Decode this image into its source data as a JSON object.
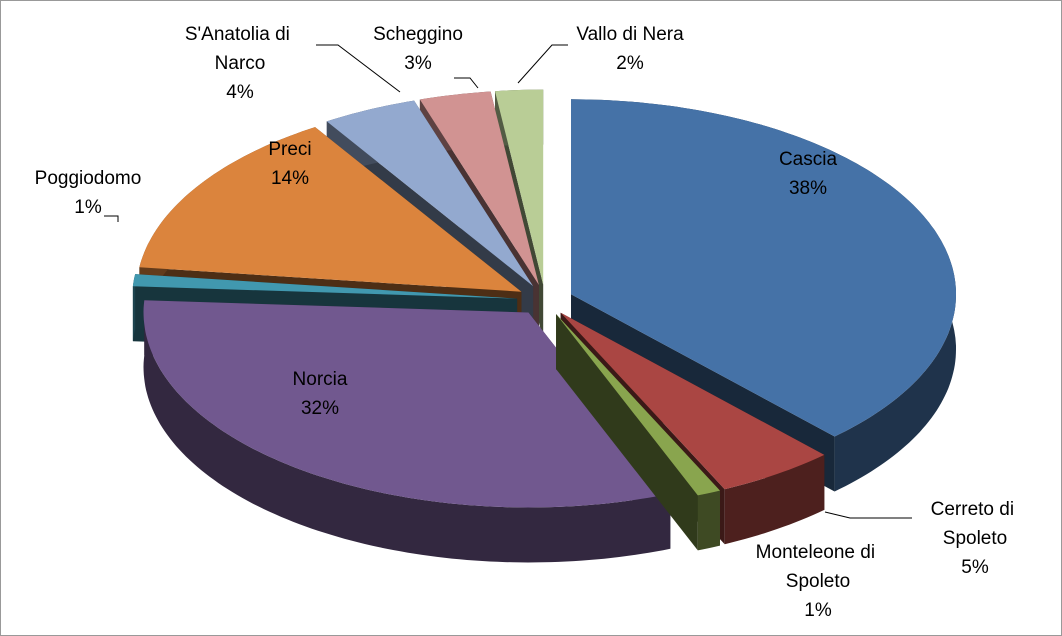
{
  "chart_data": {
    "type": "pie3d",
    "categories": [
      "Cascia",
      "Cerreto di Spoleto",
      "Monteleone di Spoleto",
      "Norcia",
      "Poggiodomo",
      "Preci",
      "S'Anatolia di Narco",
      "Scheggino",
      "Vallo di Nera"
    ],
    "values": [
      38,
      5,
      1,
      32,
      1,
      14,
      4,
      3,
      2
    ],
    "value_labels": [
      "38%",
      "5%",
      "1%",
      "32%",
      "1%",
      "14%",
      "4%",
      "3%",
      "2%"
    ],
    "colors": [
      "#4572a7",
      "#aa4643",
      "#89a54e",
      "#71588f",
      "#4198af",
      "#db843d",
      "#93a9cf",
      "#d19392",
      "#b9cd96"
    ]
  }
}
